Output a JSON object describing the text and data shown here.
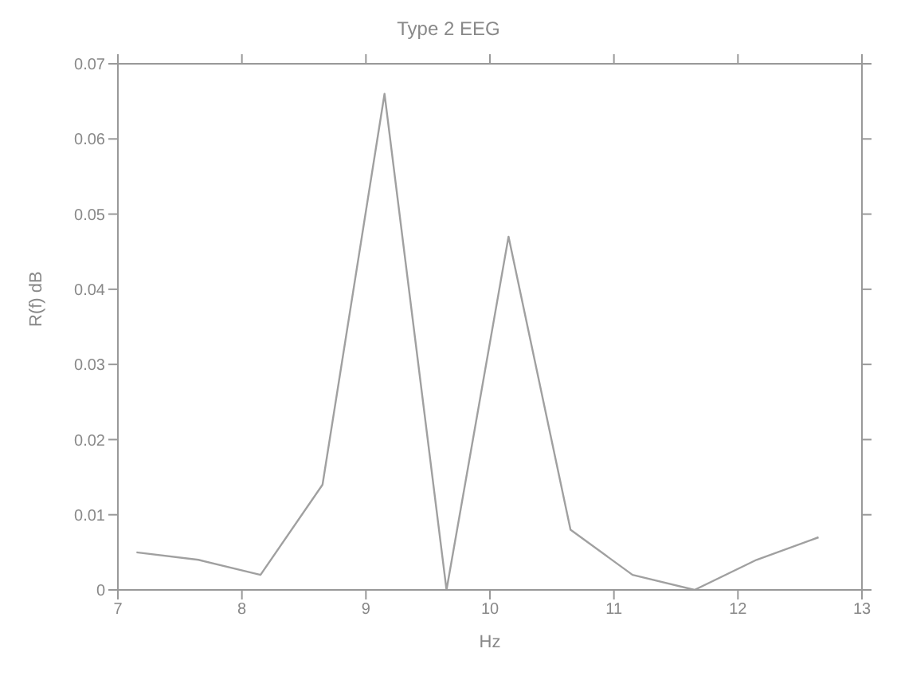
{
  "chart_data": {
    "type": "line",
    "title": "Type 2 EEG",
    "xlabel": "Hz",
    "ylabel": "R(f) dB",
    "x": [
      7.15,
      7.65,
      8.15,
      8.65,
      9.15,
      9.65,
      10.15,
      10.65,
      11.15,
      11.65,
      12.15,
      12.65
    ],
    "values": [
      0.005,
      0.004,
      0.002,
      0.014,
      0.066,
      0,
      0.047,
      0.008,
      0.002,
      0,
      0.004,
      0.007
    ],
    "color": "#a0a0a0",
    "xlim": [
      7,
      13
    ],
    "xticks": [
      7,
      8,
      9,
      10,
      11,
      12,
      13
    ],
    "ylim": [
      0,
      0.07
    ],
    "yticks": [
      0,
      0.01,
      0.02,
      0.03,
      0.04,
      0.05,
      0.06,
      0.07
    ],
    "grid": false,
    "marker": "none",
    "line_style": "solid"
  }
}
